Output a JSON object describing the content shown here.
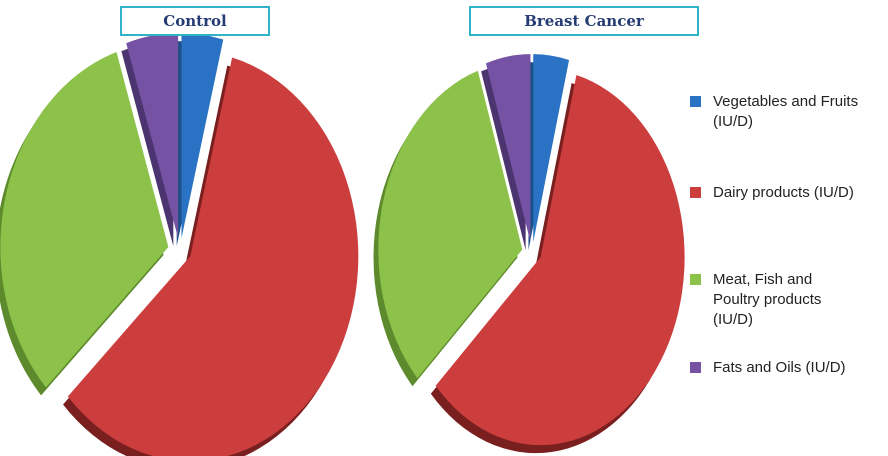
{
  "chart_data": [
    {
      "type": "pie",
      "title": "Control",
      "slices": [
        {
          "label": "Vegetables and Fruits (IU/D)",
          "value": 4
        },
        {
          "label": "Dairy products (IU/D)",
          "value": 59
        },
        {
          "label": "Meat, Fish and Poultry products (IU/D)",
          "value": 32
        },
        {
          "label": "Fats and Oils (IU/D)",
          "value": 5
        }
      ],
      "exploded": true,
      "style": "3d"
    },
    {
      "type": "pie",
      "title": "Breast Cancer",
      "slices": [
        {
          "label": "Vegetables and Fruits (IU/D)",
          "value": 4
        },
        {
          "label": "Dairy products (IU/D)",
          "value": 59
        },
        {
          "label": "Meat, Fish and Poultry products (IU/D)",
          "value": 32
        },
        {
          "label": "Fats and Oils (IU/D)",
          "value": 5
        }
      ],
      "exploded": true,
      "style": "3d"
    }
  ],
  "legend": {
    "placement": "right",
    "items": [
      {
        "label": "Vegetables and Fruits (IU/D)",
        "color": "#2a73c4"
      },
      {
        "label": "Dairy products (IU/D)",
        "color": "#cc3e3e"
      },
      {
        "label": "Meat, Fish and Poultry products (IU/D)",
        "color": "#8cc24a"
      },
      {
        "label": "Fats and Oils (IU/D)",
        "color": "#7552a3"
      }
    ]
  }
}
